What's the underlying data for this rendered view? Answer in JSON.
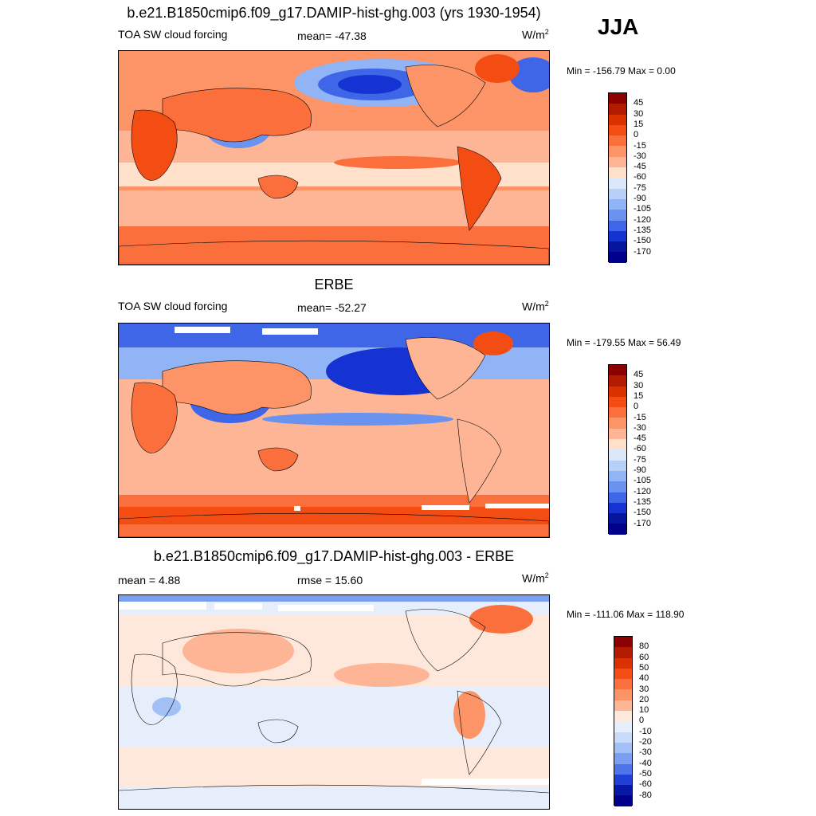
{
  "season": "JJA",
  "panels": [
    {
      "title": "b.e21.B1850cmip6.f09_g17.DAMIP-hist-ghg.003 (yrs 1930-1954)",
      "left_text": "TOA SW cloud forcing",
      "center_text": "mean= -47.38",
      "units_base": "W/m",
      "units_exp": "2",
      "minmax": "Min = -156.79 Max =   0.00",
      "levels": [
        "45",
        "30",
        "15",
        "0",
        "-15",
        "-30",
        "-45",
        "-60",
        "-75",
        "-90",
        "-105",
        "-120",
        "-135",
        "-150",
        "-170"
      ],
      "colors": [
        "#8b0000",
        "#b31b00",
        "#d93200",
        "#f44d14",
        "#fa6f3c",
        "#fc9468",
        "#fdb596",
        "#fee0cb",
        "#dbe8fa",
        "#b6d0fa",
        "#90b4f5",
        "#6a93ef",
        "#3e66e6",
        "#1533d2",
        "#05159e",
        "#00008b"
      ]
    },
    {
      "title": "ERBE",
      "left_text": "TOA SW cloud forcing",
      "center_text": "mean= -52.27",
      "units_base": "W/m",
      "units_exp": "2",
      "minmax": "Min = -179.55 Max =  56.49",
      "levels": [
        "45",
        "30",
        "15",
        "0",
        "-15",
        "-30",
        "-45",
        "-60",
        "-75",
        "-90",
        "-105",
        "-120",
        "-135",
        "-150",
        "-170"
      ],
      "colors": [
        "#8b0000",
        "#b31b00",
        "#d93200",
        "#f44d14",
        "#fa6f3c",
        "#fc9468",
        "#fdb596",
        "#fee0cb",
        "#dbe8fa",
        "#b6d0fa",
        "#90b4f5",
        "#6a93ef",
        "#3e66e6",
        "#1533d2",
        "#05159e",
        "#00008b"
      ]
    },
    {
      "title": "b.e21.B1850cmip6.f09_g17.DAMIP-hist-ghg.003 - ERBE",
      "left_text": "mean =   4.88",
      "center_text": "rmse =  15.60",
      "units_base": "W/m",
      "units_exp": "2",
      "minmax": "Min = -111.06 Max = 118.90",
      "levels": [
        "80",
        "60",
        "50",
        "40",
        "30",
        "20",
        "10",
        "0",
        "-10",
        "-20",
        "-30",
        "-40",
        "-50",
        "-60",
        "-80"
      ],
      "colors": [
        "#8b0000",
        "#b31b00",
        "#d93200",
        "#f44d14",
        "#fa6f3c",
        "#fc9468",
        "#fdb596",
        "#fee8dc",
        "#e6eefb",
        "#c8dafa",
        "#a3c0f6",
        "#7a9ef1",
        "#4d74e8",
        "#1f3fd6",
        "#0818a6",
        "#00008b"
      ]
    }
  ]
}
